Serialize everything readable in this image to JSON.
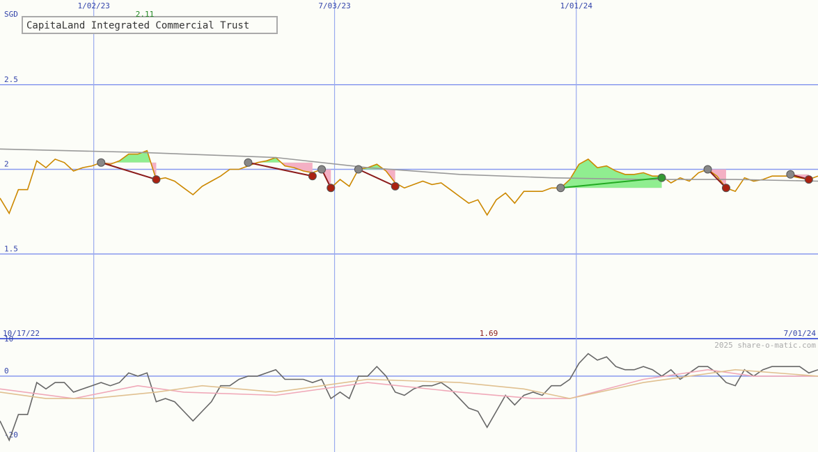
{
  "chart_data": [
    {
      "type": "line",
      "title": "CapitaLand Integrated Commercial Trust",
      "y_unit": "SGD",
      "high_label": 2.11,
      "low_label": 1.69,
      "start_label": "10/17/22",
      "end_label": "7/01/24",
      "watermark": "2025 share-o-matic.com",
      "xlim": [
        0,
        89
      ],
      "xticks": [
        {
          "value": 10.2,
          "label": "1/02/23"
        },
        {
          "value": 36.4,
          "label": "7/03/23"
        },
        {
          "value": 62.7,
          "label": "1/01/24"
        }
      ],
      "ylim": [
        1,
        3
      ],
      "yticks": [
        2.5,
        2,
        1.5
      ],
      "grid": true,
      "series": [
        {
          "color": "#cc8800",
          "values": [
            1.83,
            1.74,
            1.88,
            1.88,
            2.05,
            2.01,
            2.06,
            2.04,
            1.99,
            2.01,
            2.02,
            2.04,
            2.03,
            2.05,
            2.09,
            2.09,
            2.11,
            1.94,
            1.95,
            1.93,
            1.89,
            1.85,
            1.9,
            1.93,
            1.96,
            2,
            2,
            2.02,
            2.04,
            2.05,
            2.07,
            2.02,
            2.01,
            1.99,
            1.98,
            2,
            1.89,
            1.94,
            1.9,
            2,
            2.01,
            2.03,
            1.99,
            1.92,
            1.89,
            1.91,
            1.93,
            1.91,
            1.92,
            1.88,
            1.84,
            1.8,
            1.82,
            1.73,
            1.82,
            1.86,
            1.8,
            1.87,
            1.87,
            1.87,
            1.89,
            1.89,
            1.94,
            2.03,
            2.06,
            2.01,
            2.02,
            1.99,
            1.97,
            1.97,
            1.98,
            1.96,
            1.96,
            1.92,
            1.95,
            1.93,
            1.98,
            2,
            1.96,
            1.89,
            1.87,
            1.95,
            1.93,
            1.94,
            1.96,
            1.96,
            1.96,
            1.95,
            1.94,
            1.96
          ]
        },
        {
          "color": "#999999",
          "x": [
            0,
            15,
            30,
            40,
            50,
            60,
            70,
            80,
            89
          ],
          "values": [
            2.12,
            2.1,
            2.07,
            2.01,
            1.97,
            1.95,
            1.94,
            1.94,
            1.93
          ]
        }
      ],
      "trades": [
        {
          "x": [
            11,
            17
          ],
          "values": [
            2.04,
            1.94
          ],
          "color": "#8b1a1a"
        },
        {
          "x": [
            27,
            34
          ],
          "values": [
            2.04,
            1.96
          ],
          "color": "#8b1a1a"
        },
        {
          "x": [
            35,
            36
          ],
          "values": [
            2,
            1.89
          ],
          "color": "#8b1a1a"
        },
        {
          "x": [
            39,
            43
          ],
          "values": [
            2,
            1.9
          ],
          "color": "#8b1a1a"
        },
        {
          "x": [
            61,
            72
          ],
          "values": [
            1.89,
            1.95
          ],
          "color": "#22aa22"
        },
        {
          "x": [
            77,
            79
          ],
          "values": [
            2,
            1.89
          ],
          "color": "#8b1a1a"
        },
        {
          "x": [
            86,
            88
          ],
          "values": [
            1.97,
            1.94
          ],
          "color": "#8b1a1a"
        }
      ]
    },
    {
      "type": "line",
      "xlim": [
        0,
        89
      ],
      "ylim": [
        -23.7,
        11.7
      ],
      "yticks": [
        10,
        0,
        -20
      ],
      "series": [
        {
          "color": "#666666",
          "values": [
            -14,
            -20,
            -12,
            -12,
            -2,
            -4,
            -2,
            -2,
            -5,
            -4,
            -3,
            -2,
            -3,
            -2,
            1,
            0,
            1,
            -8,
            -7,
            -8,
            -11,
            -14,
            -11,
            -8,
            -3,
            -3,
            -1,
            0,
            0,
            1,
            2,
            -1,
            -1,
            -1,
            -2,
            -1,
            -7,
            -5,
            -7,
            0,
            0,
            3,
            0,
            -5,
            -6,
            -4,
            -3,
            -3,
            -2,
            -4,
            -7,
            -10,
            -11,
            -16,
            -11,
            -6,
            -9,
            -6,
            -5,
            -6,
            -3,
            -3,
            -1,
            4,
            7,
            5,
            6,
            3,
            2,
            2,
            3,
            2,
            0,
            2,
            -1,
            1,
            3,
            3,
            1,
            -2,
            -3,
            2,
            0,
            2,
            3,
            3,
            3,
            3,
            1,
            2
          ]
        },
        {
          "color": "#f0a8b8",
          "x": [
            0,
            8,
            15,
            20,
            30,
            40,
            50,
            58,
            62,
            70,
            77,
            82,
            89
          ],
          "values": [
            -4,
            -7,
            -3,
            -5,
            -6,
            -2,
            -5,
            -7,
            -7,
            -1,
            2,
            0,
            0
          ]
        },
        {
          "color": "#e0c090",
          "x": [
            0,
            5,
            10,
            17,
            22,
            30,
            40,
            50,
            57,
            62,
            70,
            80,
            89
          ],
          "values": [
            -5,
            -7,
            -7,
            -5,
            -3,
            -5,
            -1,
            -2,
            -4,
            -7,
            -2,
            2,
            0
          ]
        }
      ]
    }
  ]
}
